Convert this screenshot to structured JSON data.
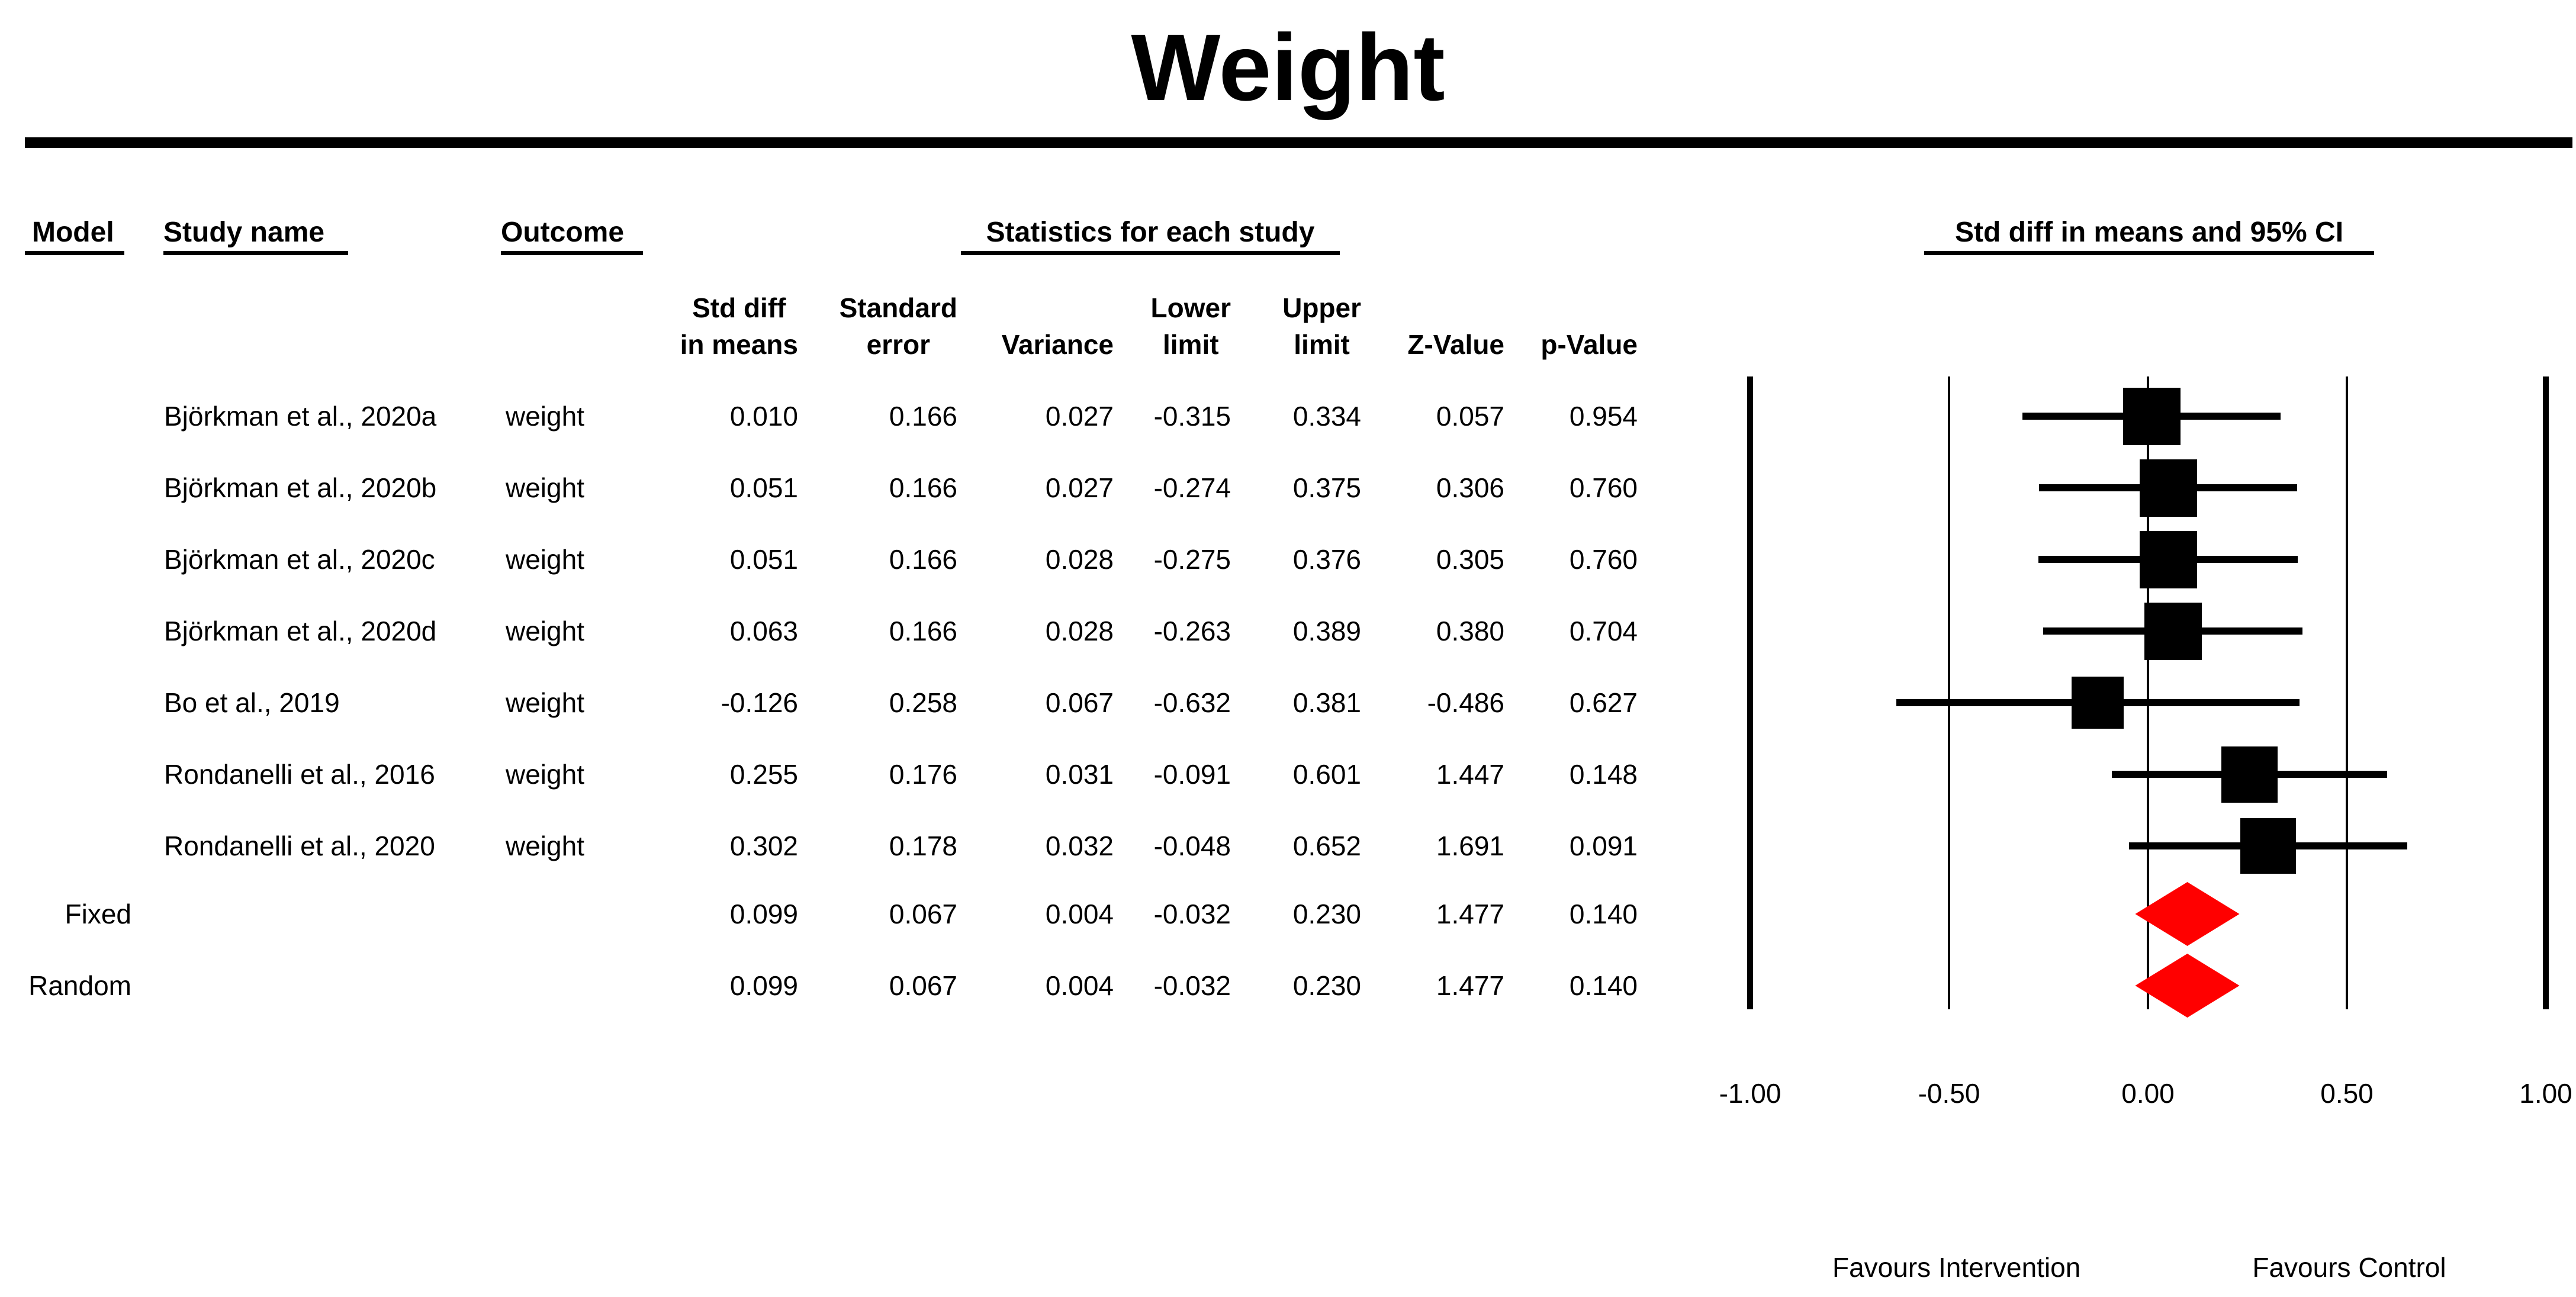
{
  "title": "Weight",
  "headers": {
    "model": "Model",
    "study_name": "Study name",
    "outcome": "Outcome",
    "stats_group": "Statistics for each study",
    "plot_group": "Std diff in means and 95% CI"
  },
  "stat_columns": [
    {
      "id": "std_diff",
      "lines": [
        "Std diff",
        "in means"
      ]
    },
    {
      "id": "se",
      "lines": [
        "Standard",
        "error"
      ]
    },
    {
      "id": "variance",
      "lines": [
        "Variance"
      ]
    },
    {
      "id": "lower",
      "lines": [
        "Lower",
        "limit"
      ]
    },
    {
      "id": "upper",
      "lines": [
        "Upper",
        "limit"
      ]
    },
    {
      "id": "z",
      "lines": [
        "Z-Value"
      ]
    },
    {
      "id": "p",
      "lines": [
        "p-Value"
      ]
    }
  ],
  "axis_tick_labels": [
    "-1.00",
    "-0.50",
    "0.00",
    "0.50",
    "1.00"
  ],
  "footer": {
    "favours_left": "Favours Intervention",
    "favours_right": "Favours Control"
  },
  "colors": {
    "marker": "#000000",
    "summary_diamond": "#FF0000",
    "text": "#000000",
    "background": "#FFFFFF"
  },
  "chart_data": {
    "type": "forest",
    "title": "Weight",
    "measure": "Std diff in means",
    "ci_level": "95% CI",
    "xlim": [
      -1.0,
      1.0
    ],
    "xticks": [
      -1.0,
      -0.5,
      0.0,
      0.5,
      1.0
    ],
    "gridlines": {
      "thick": [
        -1.0,
        1.0
      ],
      "thin": [
        -0.5,
        0.0,
        0.5
      ]
    },
    "favours_left": "Favours Intervention",
    "favours_right": "Favours Control",
    "studies": [
      {
        "name": "Björkman et al., 2020a",
        "outcome": "weight",
        "std_diff": 0.01,
        "se": 0.166,
        "variance": 0.027,
        "lower": -0.315,
        "upper": 0.334,
        "z": 0.057,
        "p": 0.954,
        "marker_px": 97
      },
      {
        "name": "Björkman et al., 2020b",
        "outcome": "weight",
        "std_diff": 0.051,
        "se": 0.166,
        "variance": 0.027,
        "lower": -0.274,
        "upper": 0.375,
        "z": 0.306,
        "p": 0.76,
        "marker_px": 97
      },
      {
        "name": "Björkman et al., 2020c",
        "outcome": "weight",
        "std_diff": 0.051,
        "se": 0.166,
        "variance": 0.028,
        "lower": -0.275,
        "upper": 0.376,
        "z": 0.305,
        "p": 0.76,
        "marker_px": 97
      },
      {
        "name": "Björkman et al., 2020d",
        "outcome": "weight",
        "std_diff": 0.063,
        "se": 0.166,
        "variance": 0.028,
        "lower": -0.263,
        "upper": 0.389,
        "z": 0.38,
        "p": 0.704,
        "marker_px": 97
      },
      {
        "name": "Bo et al., 2019",
        "outcome": "weight",
        "std_diff": -0.126,
        "se": 0.258,
        "variance": 0.067,
        "lower": -0.632,
        "upper": 0.381,
        "z": -0.486,
        "p": 0.627,
        "marker_px": 88
      },
      {
        "name": "Rondanelli et al., 2016",
        "outcome": "weight",
        "std_diff": 0.255,
        "se": 0.176,
        "variance": 0.031,
        "lower": -0.091,
        "upper": 0.601,
        "z": 1.447,
        "p": 0.148,
        "marker_px": 95
      },
      {
        "name": "Rondanelli et al., 2020",
        "outcome": "weight",
        "std_diff": 0.302,
        "se": 0.178,
        "variance": 0.032,
        "lower": -0.048,
        "upper": 0.652,
        "z": 1.691,
        "p": 0.091,
        "marker_px": 94
      }
    ],
    "summaries": [
      {
        "model": "Fixed",
        "std_diff": 0.099,
        "se": 0.067,
        "variance": 0.004,
        "lower": -0.032,
        "upper": 0.23,
        "z": 1.477,
        "p": 0.14
      },
      {
        "model": "Random",
        "std_diff": 0.099,
        "se": 0.067,
        "variance": 0.004,
        "lower": -0.032,
        "upper": 0.23,
        "z": 1.477,
        "p": 0.14
      }
    ]
  }
}
